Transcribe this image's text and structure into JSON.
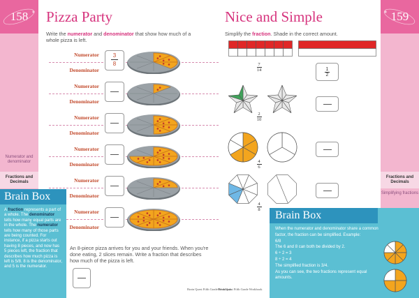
{
  "left_page": {
    "page_number": "158",
    "title": "Pizza Party",
    "instruction_parts": [
      "Write the ",
      "numerator",
      " and ",
      "denominator",
      " that show how much of a whole pizza is left."
    ],
    "labels": {
      "numerator": "Numerator",
      "denominator": "Denominator"
    },
    "example": {
      "numerator": "3",
      "denominator": "8"
    },
    "side_topic": "Numerator and denominator",
    "side_section": "Fractions and Decimals",
    "brain_box": {
      "title": "Brain Box",
      "text_parts": [
        "A ",
        "fraction",
        " represents a part of a whole. The ",
        "denominator",
        " tells how many equal parts are in the whole. The ",
        "numerator",
        " tells how many of those parts are being counted. For instance, if a pizza starts out having 8 pieces, and now has 5 pieces left, the fraction that describes how much pizza is left is ",
        "5/8",
        ". 8 is the denominator, and 5 is the numerator."
      ]
    },
    "word_problem": "An 8-piece pizza arrives for you and your friends. When you're done eating, 2 slices remain. Write a fraction that describes how much of the pizza is left.",
    "footer": "Brain Quest Fifth Grade Workbook"
  },
  "right_page": {
    "page_number": "159",
    "title": "Nice and Simple",
    "instruction_parts": [
      "Simplify the ",
      "fraction",
      ". Shade in the correct amount."
    ],
    "side_section": "Fractions and Decimals",
    "side_topic": "Simplifying fractions",
    "rows": [
      {
        "numerator": "7",
        "denominator": "14"
      },
      {
        "numerator": "2",
        "denominator": "10"
      },
      {
        "numerator": "4",
        "denominator": "6"
      },
      {
        "numerator": "4",
        "denominator": "8"
      }
    ],
    "first_answer": {
      "numerator": "1",
      "denominator": "2"
    },
    "brain_box": {
      "title": "Brain Box",
      "line1": "When the numerator and denominator share a common factor, the fraction can be simplified. Example:",
      "example_fraction": "6/8",
      "line2": "The 6 and 8 can both be divided by 2.",
      "line3": "6 ÷ 2 = 3",
      "line4": "8 ÷ 2 = 4",
      "line5": "The simplified fraction is 3/4.",
      "line6": "As you can see, the two fractions represent equal amounts."
    },
    "footer": "Brain Quest Fifth Grade Workbook"
  },
  "colors": {
    "pink_accent": "#d6337d",
    "sidebar_pink": "#f3b6cf",
    "brainbox_blue": "#5bbfd3",
    "shade_red": "#e02727",
    "shade_green": "#3fa35a",
    "shade_orange": "#f3a51e",
    "shade_blue": "#6fb8e6"
  }
}
